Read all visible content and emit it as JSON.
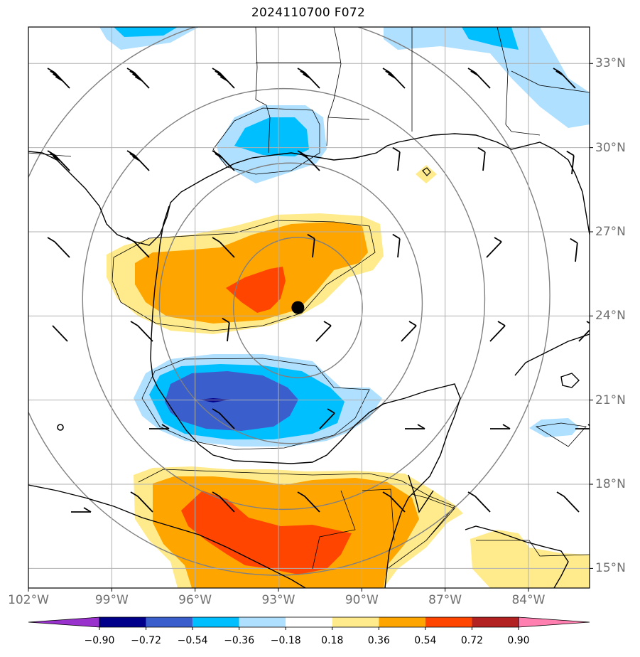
{
  "title": "2024110700 F072",
  "map": {
    "lon_range": [
      -102,
      -81.8
    ],
    "lat_range": [
      14.3,
      34.3
    ],
    "lon_ticks": [
      {
        "value": -102,
        "label": "102°W"
      },
      {
        "value": -99,
        "label": "99°W"
      },
      {
        "value": -96,
        "label": "96°W"
      },
      {
        "value": -93,
        "label": "93°W"
      },
      {
        "value": -90,
        "label": "90°W"
      },
      {
        "value": -87,
        "label": "87°W"
      },
      {
        "value": -84,
        "label": "84°W"
      }
    ],
    "lat_ticks": [
      {
        "value": 15,
        "label": "15°N"
      },
      {
        "value": 18,
        "label": "18°N"
      },
      {
        "value": 21,
        "label": "21°N"
      },
      {
        "value": 24,
        "label": "24°N"
      },
      {
        "value": 27,
        "label": "27°N"
      },
      {
        "value": 30,
        "label": "30°N"
      },
      {
        "value": 33,
        "label": "33°N"
      }
    ],
    "storm_center": {
      "lon": -92.3,
      "lat": 24.3
    },
    "range_ring_radii_deg": [
      2.5,
      5,
      7.5,
      10
    ],
    "colors": {
      "grid": "#b0b0b0",
      "rings": "#808080",
      "coast": "#000000"
    }
  },
  "colorbar": {
    "ticks": [
      "−0.90",
      "−0.72",
      "−0.54",
      "−0.36",
      "−0.18",
      "0.18",
      "0.36",
      "0.54",
      "0.72",
      "0.90"
    ],
    "colors": [
      "#9932cc",
      "#00008b",
      "#3a5fcd",
      "#00bfff",
      "#b0e0ff",
      "#ffffff",
      "#ffeb8c",
      "#ffa500",
      "#ff4500",
      "#b22222",
      "#ff80b0"
    ]
  }
}
